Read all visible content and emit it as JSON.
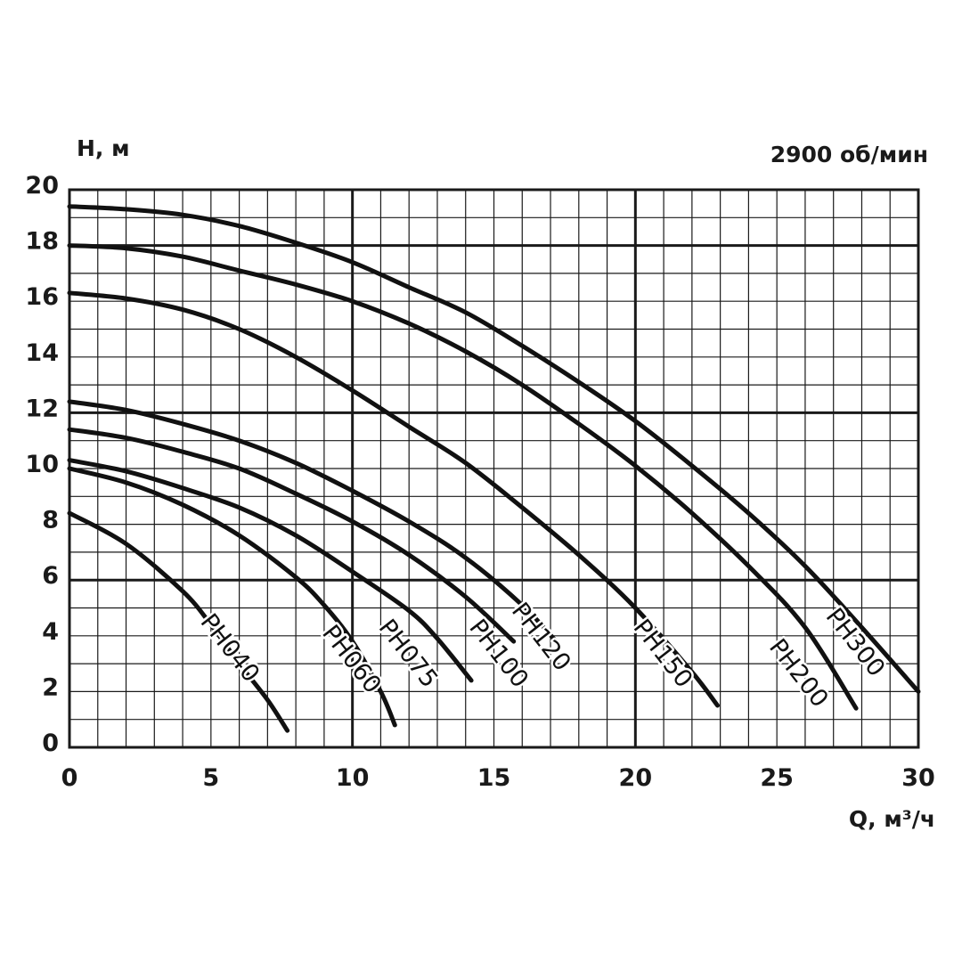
{
  "chart_data": {
    "type": "line",
    "title": "2900 об/мин",
    "xlabel": "Q, м³/ч",
    "ylabel": "H, м",
    "xlim": [
      0,
      30
    ],
    "ylim": [
      0,
      20
    ],
    "xticks": [
      0,
      5,
      10,
      15,
      20,
      25,
      30
    ],
    "yticks": [
      0,
      2,
      4,
      6,
      8,
      10,
      12,
      14,
      16,
      18,
      20
    ],
    "grid": true,
    "grid_minor_x": 1,
    "grid_minor_y": 1,
    "series": [
      {
        "name": "PH040",
        "x": [
          0,
          2,
          4,
          5,
          6,
          7,
          7.7
        ],
        "y": [
          8.4,
          7.3,
          5.6,
          4.4,
          3.0,
          1.7,
          0.6
        ]
      },
      {
        "name": "PH060",
        "x": [
          0,
          2,
          4,
          6,
          8,
          9,
          10,
          11,
          11.5
        ],
        "y": [
          10.0,
          9.5,
          8.7,
          7.6,
          6.1,
          5.1,
          3.8,
          2.0,
          0.8
        ]
      },
      {
        "name": "PH075",
        "x": [
          0,
          2,
          4,
          6,
          8,
          10,
          12,
          13,
          14.2
        ],
        "y": [
          10.3,
          9.9,
          9.3,
          8.6,
          7.6,
          6.3,
          4.9,
          3.9,
          2.4
        ]
      },
      {
        "name": "PH100",
        "x": [
          0,
          2,
          4,
          6,
          8,
          10,
          12,
          14,
          15.7
        ],
        "y": [
          11.4,
          11.1,
          10.6,
          10.0,
          9.1,
          8.1,
          6.9,
          5.4,
          3.8
        ]
      },
      {
        "name": "PH120",
        "x": [
          0,
          2,
          4,
          6,
          8,
          10,
          12,
          14,
          16,
          17.2
        ],
        "y": [
          12.4,
          12.1,
          11.6,
          11.0,
          10.2,
          9.2,
          8.1,
          6.8,
          5.1,
          3.8
        ]
      },
      {
        "name": "PH150",
        "x": [
          0,
          2,
          4,
          6,
          8,
          10,
          12,
          14,
          16,
          18,
          20,
          22,
          22.9
        ],
        "y": [
          16.3,
          16.1,
          15.7,
          15.0,
          14.0,
          12.8,
          11.5,
          10.2,
          8.6,
          6.9,
          5.0,
          2.7,
          1.5
        ]
      },
      {
        "name": "PH200",
        "x": [
          0,
          2,
          4,
          6,
          8,
          10,
          12,
          14,
          16,
          18,
          20,
          22,
          24,
          26,
          27.8
        ],
        "y": [
          18.0,
          17.9,
          17.6,
          17.1,
          16.6,
          16.0,
          15.2,
          14.2,
          13.0,
          11.6,
          10.1,
          8.4,
          6.5,
          4.3,
          1.4
        ]
      },
      {
        "name": "PH300",
        "x": [
          0,
          2,
          4,
          6,
          8,
          10,
          12,
          14,
          16,
          18,
          20,
          22,
          24,
          26,
          28,
          30
        ],
        "y": [
          19.4,
          19.3,
          19.1,
          18.7,
          18.1,
          17.4,
          16.5,
          15.6,
          14.4,
          13.1,
          11.7,
          10.1,
          8.4,
          6.5,
          4.3,
          2.0
        ]
      }
    ]
  }
}
